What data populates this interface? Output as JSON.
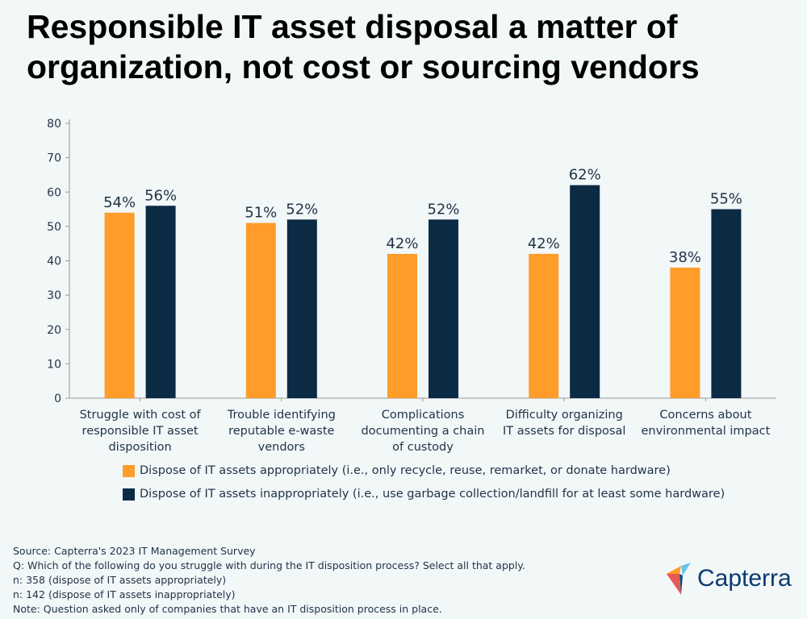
{
  "title": "Responsible IT asset disposal a matter of organization, not cost or sourcing vendors",
  "chart_data": {
    "type": "bar",
    "categories": [
      [
        "Struggle with cost of",
        "responsible IT asset",
        "disposition"
      ],
      [
        "Trouble identifying",
        "reputable e-waste",
        "vendors"
      ],
      [
        "Complications",
        "documenting a chain",
        "of custody"
      ],
      [
        "Difficulty organizing",
        "IT assets for disposal"
      ],
      [
        "Concerns about",
        "environmental impact"
      ]
    ],
    "series": [
      {
        "name": "Dispose of IT assets appropriately (i.e., only recycle, reuse, remarket, or donate hardware)",
        "values": [
          54,
          51,
          42,
          42,
          38
        ],
        "color": "#ff9c2a"
      },
      {
        "name": "Dispose of IT assets inappropriately (i.e., use garbage collection/landfill for at least some hardware)",
        "values": [
          56,
          52,
          52,
          62,
          55
        ],
        "color": "#0b2a44"
      }
    ],
    "data_label_suffix": "%",
    "ylim": [
      0,
      80
    ],
    "yticks": [
      0,
      10,
      20,
      30,
      40,
      50,
      60,
      70,
      80
    ],
    "grid": false,
    "legend_position": "bottom"
  },
  "footer": [
    "Source: Capterra's 2023 IT Management Survey",
    "Q: Which of the following do you struggle with during the IT disposition process? Select all that apply.",
    "n: 358 (dispose of IT assets appropriately)",
    "n: 142 (dispose of IT assets inappropriately)",
    "Note: Question asked only of companies that have an  IT disposition process in place."
  ],
  "logo": {
    "text": "Capterra",
    "colors": [
      "#ff9d28",
      "#68c5ed",
      "#044d80",
      "#e54747"
    ]
  }
}
